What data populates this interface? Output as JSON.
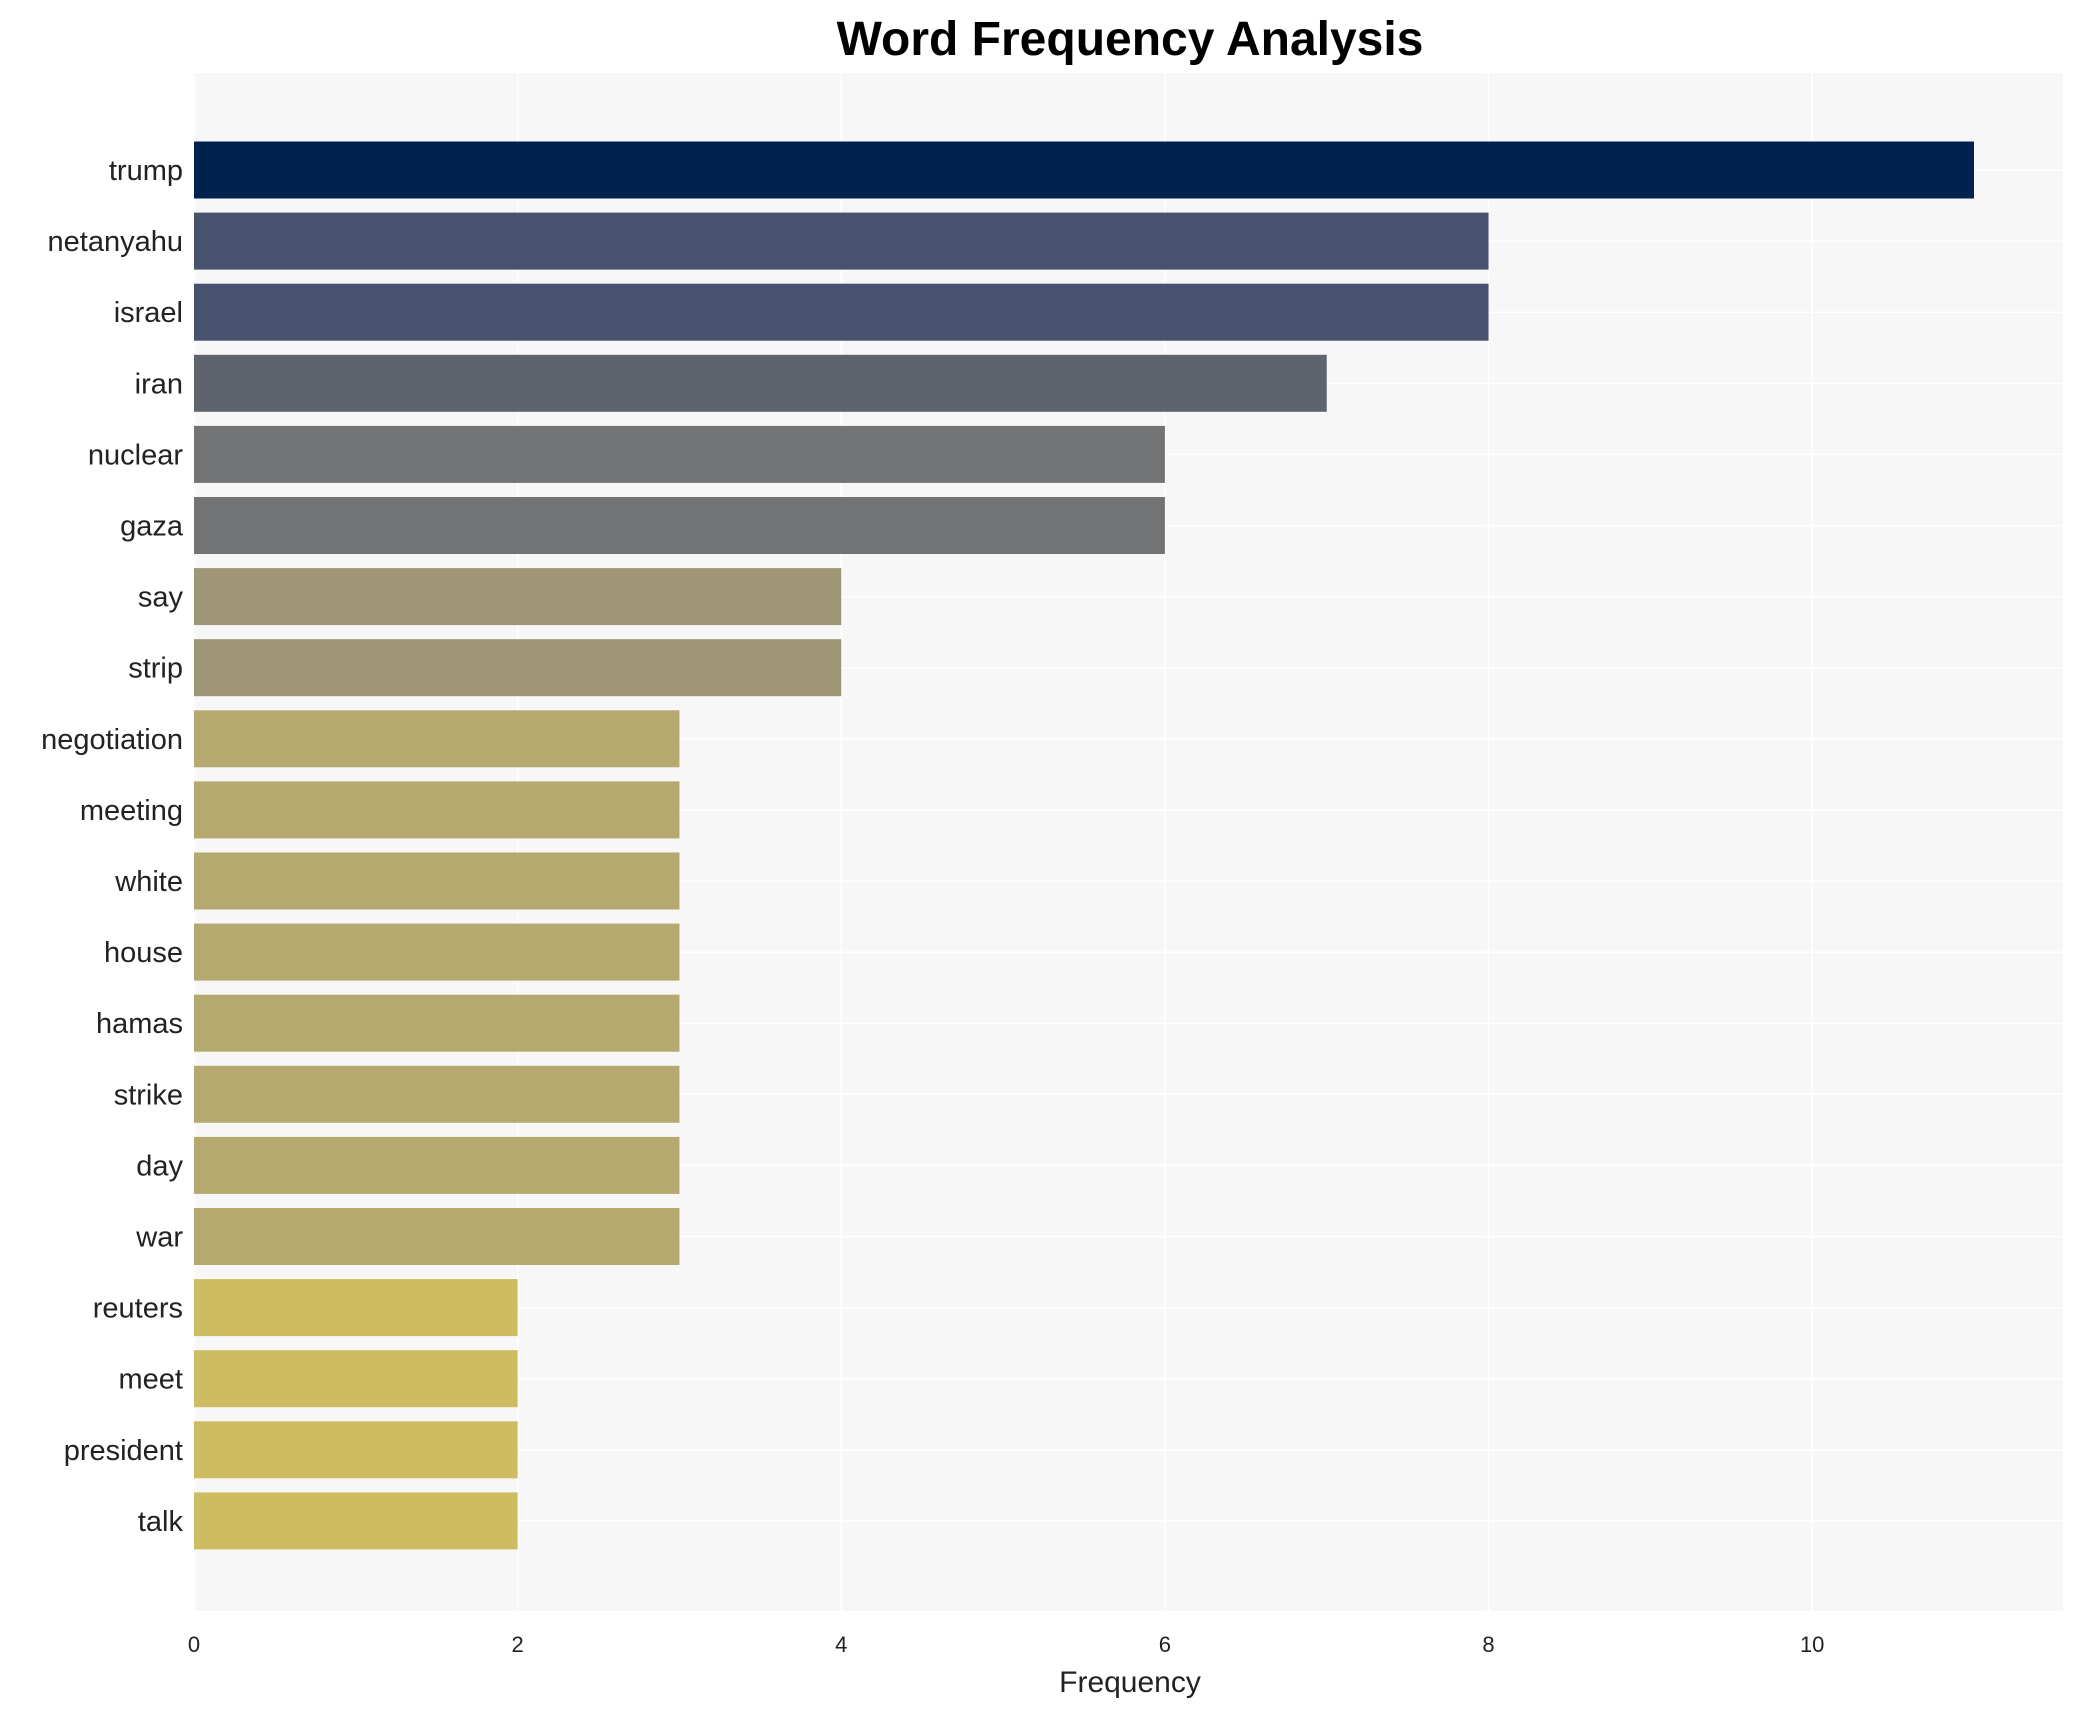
{
  "chart_data": {
    "type": "bar",
    "orientation": "horizontal",
    "title": "Word Frequency Analysis",
    "xlabel": "Frequency",
    "ylabel": "",
    "xlim": [
      0,
      11.55
    ],
    "xticks": [
      0,
      2,
      4,
      6,
      8,
      10
    ],
    "grid": true,
    "categories": [
      "trump",
      "netanyahu",
      "israel",
      "iran",
      "nuclear",
      "gaza",
      "say",
      "strip",
      "negotiation",
      "meeting",
      "white",
      "house",
      "hamas",
      "strike",
      "day",
      "war",
      "reuters",
      "meet",
      "president",
      "talk"
    ],
    "values": [
      11,
      8,
      8,
      7,
      6,
      6,
      4,
      4,
      3,
      3,
      3,
      3,
      3,
      3,
      3,
      3,
      2,
      2,
      2,
      2
    ],
    "colors": [
      "#00224e",
      "#47526e",
      "#47526e",
      "#5f636e",
      "#727374",
      "#727374",
      "#9e9677",
      "#9e9677",
      "#b5a96f",
      "#b5a96f",
      "#b5a96f",
      "#b5a96f",
      "#b5a96f",
      "#b5a96f",
      "#b5a96f",
      "#b5a96f",
      "#cdbc62",
      "#cdbc62",
      "#cdbc62",
      "#cdbc62"
    ],
    "background": "#f7f7f7"
  }
}
